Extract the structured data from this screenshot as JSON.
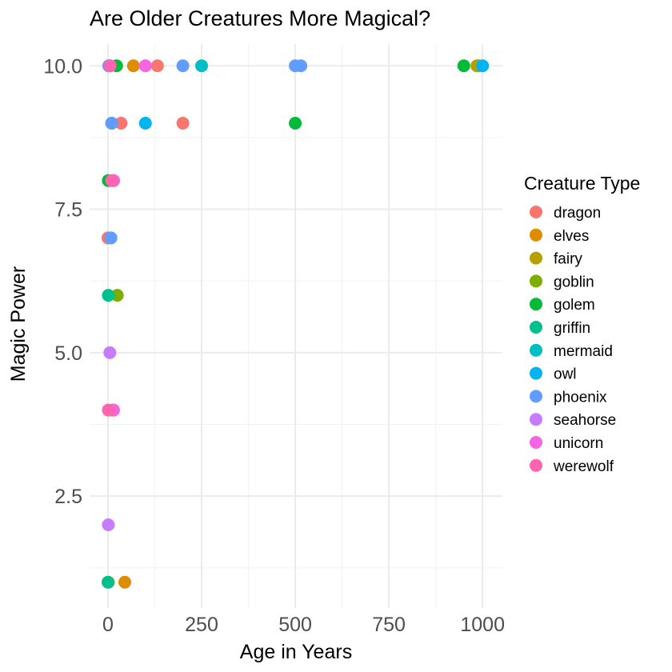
{
  "chart_data": {
    "type": "scatter",
    "title": "Are Older Creatures More Magical?",
    "xlabel": "Age in Years",
    "ylabel": "Magic Power",
    "xlim": [
      -49,
      1053
    ],
    "ylim": [
      0.55,
      10.38
    ],
    "xticks": [
      0,
      250,
      500,
      750,
      1000
    ],
    "xtick_labels": [
      "0",
      "250",
      "500",
      "750",
      "1000"
    ],
    "yticks": [
      2.5,
      5,
      7.5,
      10
    ],
    "ytick_labels": [
      "2.5",
      "5.0",
      "7.5",
      "10.0"
    ],
    "grid": true,
    "legend": {
      "title": "Creature Type",
      "placement": "right"
    },
    "series": [
      {
        "name": "dragon",
        "color": "#F8766D",
        "points": [
          [
            132,
            10
          ],
          [
            35,
            9
          ],
          [
            200,
            9
          ],
          [
            0,
            7
          ]
        ]
      },
      {
        "name": "elves",
        "color": "#DE8C00",
        "points": [
          [
            68,
            10
          ],
          [
            990,
            10
          ],
          [
            1,
            1
          ],
          [
            45,
            1
          ]
        ]
      },
      {
        "name": "fairy",
        "color": "#B79F00",
        "points": [
          [
            3,
            10
          ],
          [
            985,
            10
          ]
        ]
      },
      {
        "name": "goblin",
        "color": "#7CAE00",
        "points": [
          [
            25,
            6
          ],
          [
            12,
            4
          ]
        ]
      },
      {
        "name": "golem",
        "color": "#00BA38",
        "points": [
          [
            950,
            10
          ],
          [
            500,
            9
          ],
          [
            23,
            10
          ],
          [
            10,
            9
          ],
          [
            1,
            8
          ]
        ]
      },
      {
        "name": "griffin",
        "color": "#00C08B",
        "points": [
          [
            1,
            6
          ],
          [
            0,
            1
          ]
        ]
      },
      {
        "name": "mermaid",
        "color": "#00BFC4",
        "points": [
          [
            250,
            10
          ]
        ]
      },
      {
        "name": "owl",
        "color": "#00B4F0",
        "points": [
          [
            1000,
            10
          ],
          [
            100,
            9
          ]
        ]
      },
      {
        "name": "phoenix",
        "color": "#619CFF",
        "points": [
          [
            2,
            10
          ],
          [
            200,
            10
          ],
          [
            500,
            10
          ],
          [
            515,
            10
          ],
          [
            10,
            9
          ],
          [
            15,
            8
          ],
          [
            8,
            7
          ]
        ]
      },
      {
        "name": "seahorse",
        "color": "#C77CFF",
        "points": [
          [
            5,
            5
          ],
          [
            1,
            2
          ]
        ]
      },
      {
        "name": "unicorn",
        "color": "#F564E3",
        "points": [
          [
            100,
            10
          ],
          [
            15,
            8
          ],
          [
            15,
            4
          ]
        ]
      },
      {
        "name": "werewolf",
        "color": "#FF64B0",
        "points": [
          [
            6,
            10
          ],
          [
            10,
            8
          ],
          [
            1,
            4
          ]
        ]
      }
    ]
  }
}
